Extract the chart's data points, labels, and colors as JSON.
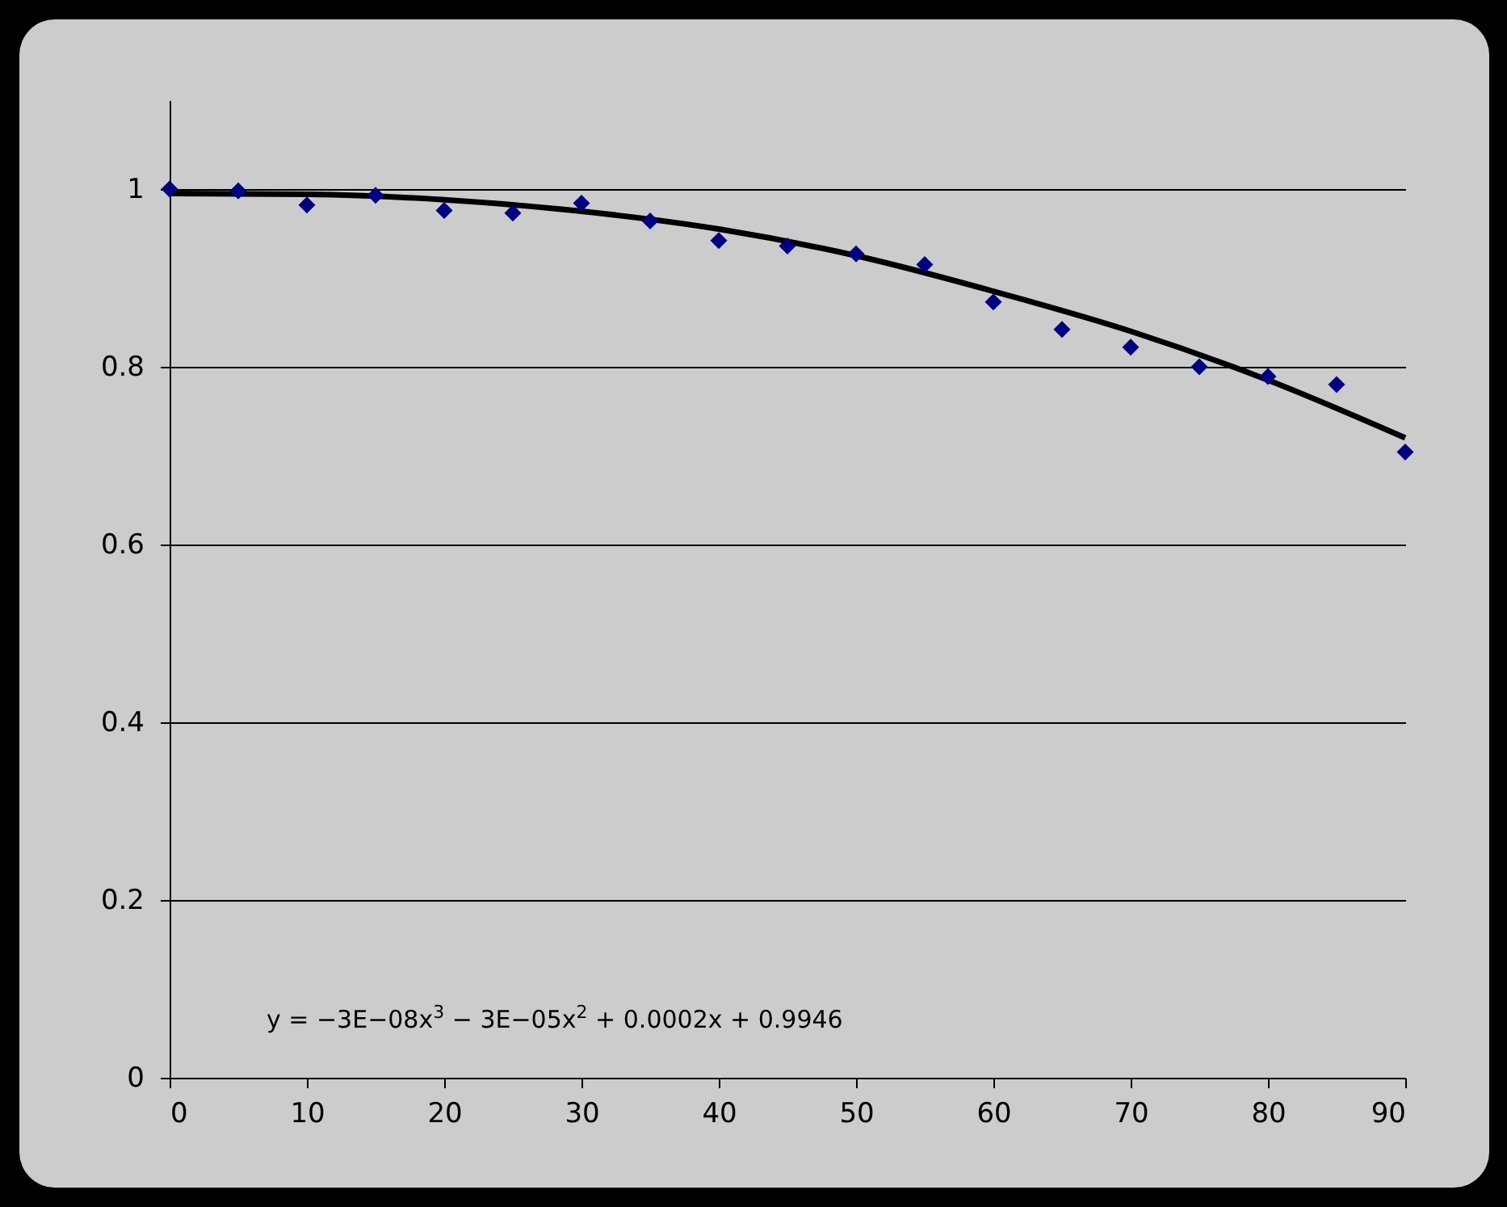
{
  "chart_data": {
    "type": "scatter",
    "xlim": [
      0,
      90
    ],
    "xticks": [
      0,
      10,
      20,
      30,
      40,
      50,
      60,
      70,
      80,
      90
    ],
    "ylim": [
      0,
      1.1
    ],
    "yticks": [
      0,
      0.2,
      0.4,
      0.6,
      0.8,
      1
    ],
    "grid": "y",
    "annotations": [
      "y = −3E−08x$^{3}$ − 3E−05x$^{2}$ + 0.0002x + 0.9946"
    ],
    "series": [
      {
        "marker": "diamond",
        "color": "#000080",
        "x": [
          0,
          5,
          10,
          15,
          20,
          25,
          30,
          35,
          40,
          45,
          50,
          55,
          60,
          65,
          70,
          75,
          80,
          85,
          90
        ],
        "values": [
          1.0,
          0.998,
          0.982,
          0.993,
          0.976,
          0.973,
          0.984,
          0.964,
          0.942,
          0.936,
          0.927,
          0.915,
          0.873,
          0.842,
          0.822,
          0.8,
          0.789,
          0.78,
          0.704
        ]
      },
      {
        "type": "line",
        "color": "#000000",
        "x": [
          0,
          10,
          20,
          30,
          40,
          50,
          60,
          70,
          80,
          90
        ],
        "values": [
          0.995,
          0.994,
          0.988,
          0.975,
          0.955,
          0.925,
          0.885,
          0.84,
          0.785,
          0.72
        ]
      }
    ]
  }
}
